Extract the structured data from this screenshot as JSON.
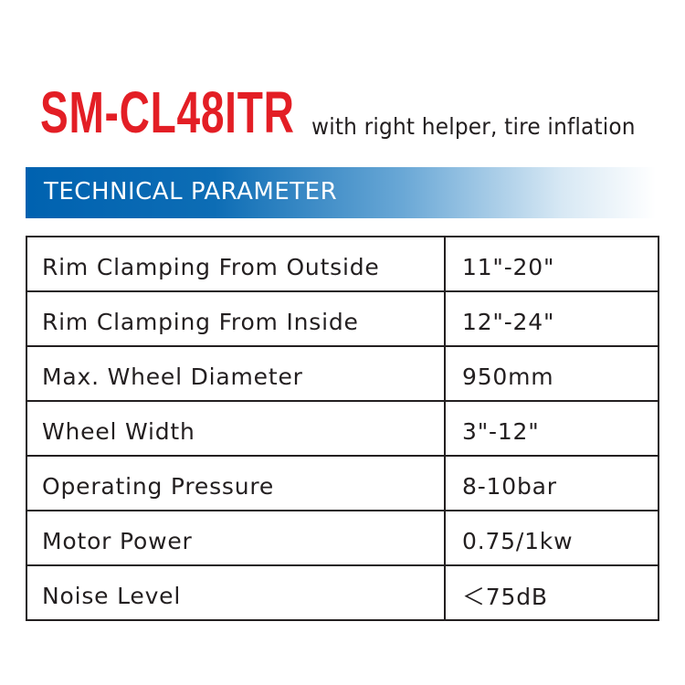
{
  "header": {
    "model": "SM-CL48ITR",
    "subtitle": "with right helper, tire inflation",
    "section_title": "TECHNICAL PARAMETER",
    "brand_red": "#e31e25",
    "bar_blue": "#0062b0"
  },
  "specs": [
    {
      "label": "Rim Clamping From Outside",
      "value": "11\"-20\""
    },
    {
      "label": "Rim Clamping From Inside",
      "value": "12\"-24\""
    },
    {
      "label": "Max. Wheel Diameter",
      "value": "950mm"
    },
    {
      "label": "Wheel Width",
      "value": "3\"-12\""
    },
    {
      "label": "Operating Pressure",
      "value": "8-10bar"
    },
    {
      "label": "Motor Power",
      "value": "0.75/1kw"
    },
    {
      "label": "Noise Level",
      "value": "＜75dB"
    }
  ]
}
